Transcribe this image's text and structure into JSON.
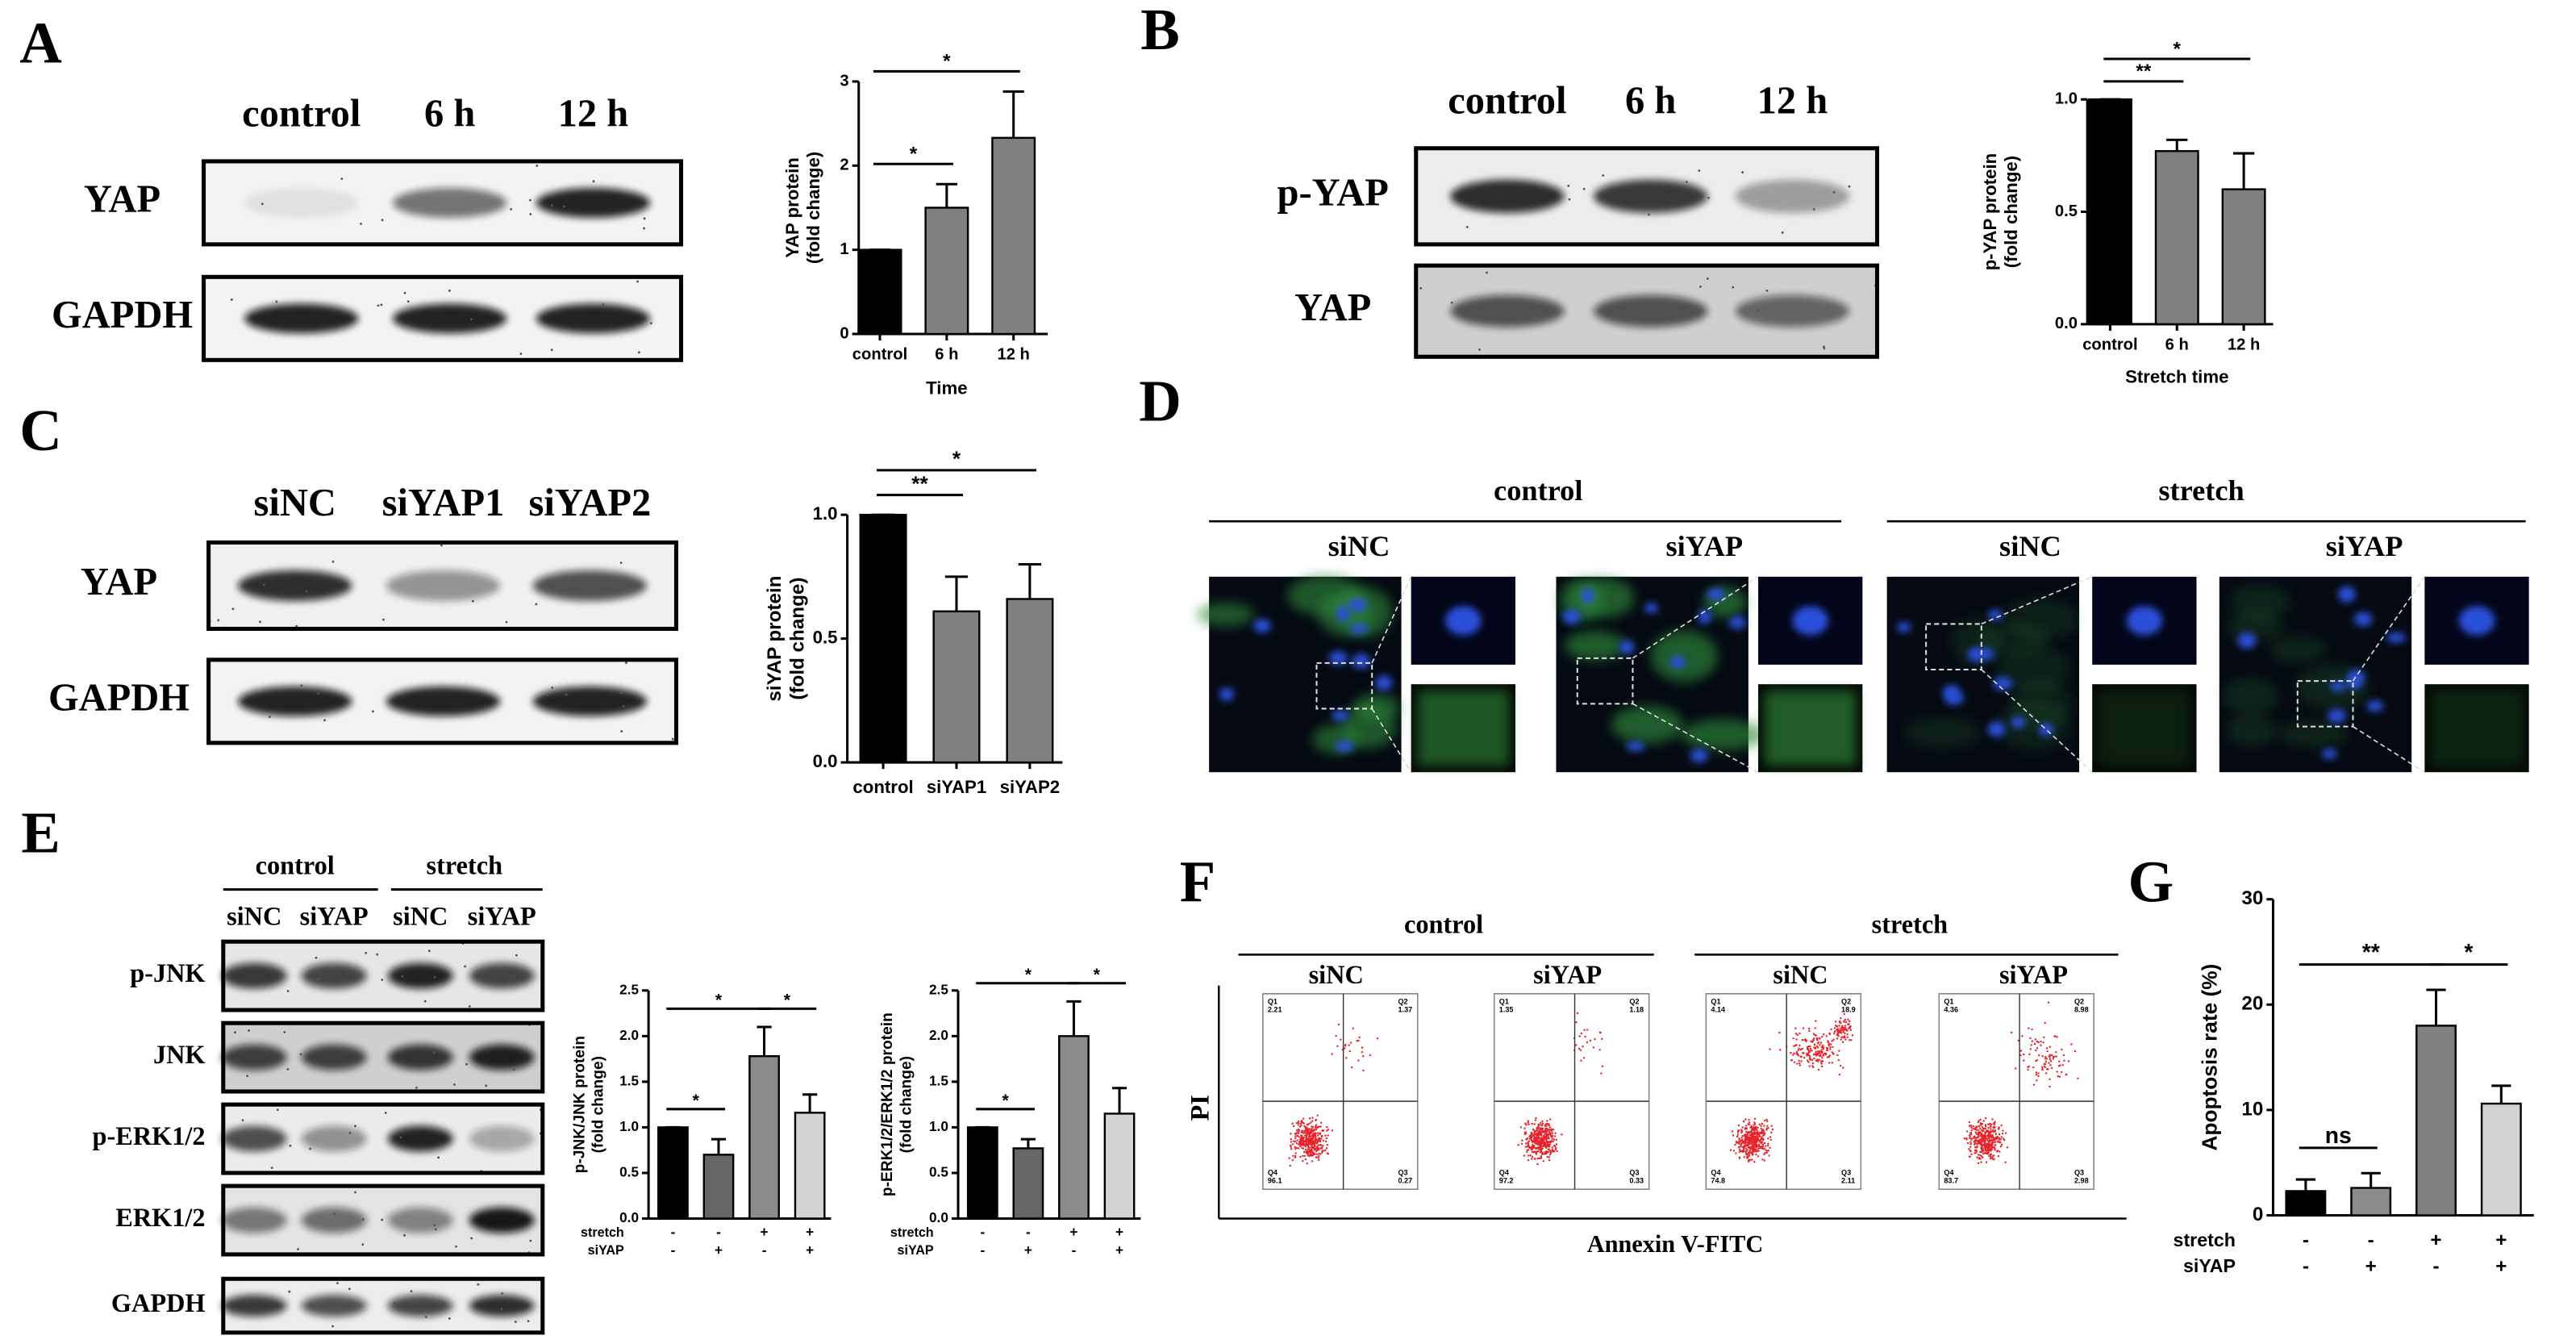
{
  "panel_labels": [
    "A",
    "B",
    "C",
    "D",
    "E",
    "F",
    "G"
  ],
  "blots": [
    {
      "lanes": [
        "control",
        "6 h",
        "12 h"
      ],
      "rows": [
        "YAP",
        "GAPDH"
      ]
    },
    {
      "lanes": [
        "control",
        "6 h",
        "12 h"
      ],
      "rows": [
        "p-YAP",
        "YAP"
      ]
    },
    {
      "lanes": [
        "siNC",
        "siYAP1",
        "siYAP2"
      ],
      "rows": [
        "YAP",
        "GAPDH"
      ]
    },
    {
      "groups": [
        "control",
        "stretch"
      ],
      "lanes": [
        "siNC",
        "siYAP",
        "siNC",
        "siYAP"
      ],
      "rows": [
        "p-JNK",
        "JNK",
        "p-ERK1/2",
        "ERK1/2",
        "GAPDH"
      ]
    }
  ],
  "imaging": {
    "groups": [
      {
        "label": "control",
        "lanes": [
          "siNC",
          "siYAP"
        ]
      },
      {
        "label": "stretch",
        "lanes": [
          "siNC",
          "siYAP"
        ]
      }
    ]
  },
  "flow": {
    "groups": [
      {
        "label": "control",
        "lanes": [
          "siNC",
          "siYAP"
        ]
      },
      {
        "label": "stretch",
        "lanes": [
          "siNC",
          "siYAP"
        ]
      }
    ],
    "y_label": "PI",
    "x_label": "Annexin V-FITC",
    "plots": [
      [
        {
          "name": "Q1",
          "value": 2.21
        },
        {
          "name": "Q2",
          "value": 1.37
        },
        {
          "name": "Q3",
          "value": 0.27
        },
        {
          "name": "Q4",
          "value": 96.1
        }
      ],
      [
        {
          "name": "Q1",
          "value": 1.35
        },
        {
          "name": "Q2",
          "value": 1.18
        },
        {
          "name": "Q3",
          "value": 0.33
        },
        {
          "name": "Q4",
          "value": 97.2
        }
      ],
      [
        {
          "name": "Q1",
          "value": 4.14
        },
        {
          "name": "Q2",
          "value": 18.9
        },
        {
          "name": "Q3",
          "value": 2.11
        },
        {
          "name": "Q4",
          "value": 74.8
        }
      ],
      [
        {
          "name": "Q1",
          "value": 4.36
        },
        {
          "name": "Q2",
          "value": 8.98
        },
        {
          "name": "Q3",
          "value": 2.98
        },
        {
          "name": "Q4",
          "value": 83.7
        }
      ]
    ]
  },
  "chart_data": [
    {
      "type": "bar",
      "y_label": [
        "YAP protein",
        "(fold change)"
      ],
      "x_label": "Time",
      "categories": [
        "control",
        "6 h",
        "12 h"
      ],
      "values": [
        1,
        1.5,
        2.33
      ],
      "errors": [
        0,
        0.28,
        0.55
      ],
      "colors": [
        "#000000",
        "#808080",
        "#808080"
      ],
      "ylim": [
        0,
        3
      ],
      "yticks": [
        0,
        1,
        2,
        3
      ],
      "annotations": [
        {
          "text": "*",
          "from": 0,
          "to": 1
        },
        {
          "text": "*",
          "from": 0,
          "to": 2
        }
      ]
    },
    {
      "type": "bar",
      "y_label": [
        "p-YAP protein",
        "(fold change)"
      ],
      "x_label": "Stretch time",
      "categories": [
        "control",
        "6 h",
        "12 h"
      ],
      "values": [
        1,
        0.77,
        0.6
      ],
      "errors": [
        0,
        0.05,
        0.16
      ],
      "colors": [
        "#000000",
        "#808080",
        "#808080"
      ],
      "ylim": [
        0,
        1
      ],
      "yticks": [
        {
          "value": 0,
          "label": "0.0"
        },
        {
          "value": 0.5,
          "label": "0.5"
        },
        {
          "value": 1,
          "label": "1.0"
        }
      ],
      "annotations": [
        {
          "text": "**",
          "from": 0,
          "to": 1
        },
        {
          "text": "*",
          "from": 0,
          "to": 2
        }
      ]
    },
    {
      "type": "bar",
      "y_label": [
        "siYAP protein",
        "(fold change)"
      ],
      "categories": [
        "control",
        "siYAP1",
        "siYAP2"
      ],
      "values": [
        1,
        0.61,
        0.66
      ],
      "errors": [
        0,
        0.14,
        0.14
      ],
      "colors": [
        "#000000",
        "#808080",
        "#808080"
      ],
      "ylim": [
        0,
        1
      ],
      "yticks": [
        {
          "value": 0,
          "label": "0.0"
        },
        {
          "value": 0.5,
          "label": "0.5"
        },
        {
          "value": 1,
          "label": "1.0"
        }
      ],
      "annotations": [
        {
          "text": "**",
          "from": 0,
          "to": 1
        },
        {
          "text": "*",
          "from": 0,
          "to": 2
        }
      ]
    },
    {
      "type": "bar",
      "y_label": [
        "p-JNK/JNK protein",
        "(fold change)"
      ],
      "values": [
        1,
        0.7,
        1.78,
        1.16
      ],
      "errors": [
        0,
        0.17,
        0.32,
        0.2
      ],
      "colors": [
        "#000000",
        "#666666",
        "#8c8c8c",
        "#d4d4d4"
      ],
      "ylim": [
        0,
        2.5
      ],
      "yticks": [
        {
          "value": 0,
          "label": "0.0"
        },
        {
          "value": 0.5,
          "label": "0.5"
        },
        {
          "value": 1,
          "label": "1.0"
        },
        {
          "value": 1.5,
          "label": "1.5"
        },
        {
          "value": 2,
          "label": "2.0"
        },
        {
          "value": 2.5,
          "label": "2.5"
        }
      ],
      "conditions": [
        {
          "label": "stretch",
          "marks": [
            "-",
            "-",
            "+",
            "+"
          ]
        },
        {
          "label": "siYAP",
          "marks": [
            "-",
            "+",
            "-",
            "+"
          ]
        }
      ],
      "annotations": [
        {
          "text": "*",
          "from": 0,
          "to": 1
        },
        {
          "text": "*",
          "from": 0,
          "to": 2
        },
        {
          "text": "*",
          "from": 2,
          "to": 3
        }
      ]
    },
    {
      "type": "bar",
      "y_label": [
        "p-ERK1/2/ERK1/2 protein",
        "(fold change)"
      ],
      "values": [
        1,
        0.77,
        2.0,
        1.15
      ],
      "errors": [
        0,
        0.1,
        0.38,
        0.28
      ],
      "colors": [
        "#000000",
        "#666666",
        "#8c8c8c",
        "#d4d4d4"
      ],
      "ylim": [
        0,
        2.5
      ],
      "yticks": [
        {
          "value": 0,
          "label": "0.0"
        },
        {
          "value": 0.5,
          "label": "0.5"
        },
        {
          "value": 1,
          "label": "1.0"
        },
        {
          "value": 1.5,
          "label": "1.5"
        },
        {
          "value": 2,
          "label": "2.0"
        },
        {
          "value": 2.5,
          "label": "2.5"
        }
      ],
      "conditions": [
        {
          "label": "stretch",
          "marks": [
            "-",
            "-",
            "+",
            "+"
          ]
        },
        {
          "label": "siYAP",
          "marks": [
            "-",
            "+",
            "-",
            "+"
          ]
        }
      ],
      "annotations": [
        {
          "text": "*",
          "from": 0,
          "to": 1
        },
        {
          "text": "*",
          "from": 0,
          "to": 2
        },
        {
          "text": "*",
          "from": 2,
          "to": 3
        }
      ]
    },
    {
      "type": "bar",
      "y_label": [
        "Apoptosis rate (%)"
      ],
      "values": [
        2.3,
        2.6,
        18,
        10.6
      ],
      "errors": [
        1.1,
        1.4,
        3.4,
        1.7
      ],
      "colors": [
        "#000000",
        "#8c8c8c",
        "#808080",
        "#d4d4d4"
      ],
      "ylim": [
        0,
        30
      ],
      "yticks": [
        0,
        10,
        20,
        30
      ],
      "conditions": [
        {
          "label": "stretch",
          "marks": [
            "-",
            "-",
            "+",
            "+"
          ]
        },
        {
          "label": "siYAP",
          "marks": [
            "-",
            "+",
            "-",
            "+"
          ]
        }
      ],
      "annotations": [
        {
          "text": "ns",
          "from": 0,
          "to": 1
        },
        {
          "text": "**",
          "from": 0,
          "to": 2
        },
        {
          "text": "*",
          "from": 2,
          "to": 3
        }
      ]
    }
  ]
}
